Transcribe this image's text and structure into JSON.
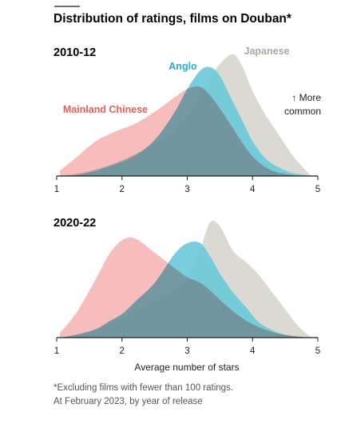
{
  "title": "Distribution of ratings, films on Douban*",
  "xlabel": "Average number of stars",
  "annotation": [
    "↑ More",
    "common"
  ],
  "footnote": [
    "*Excluding films with fewer than 100 ratings.",
    "At February 2023, by year of release"
  ],
  "chart_data": [
    {
      "type": "area",
      "panel_title": "2010-12",
      "xlim": [
        1,
        5
      ],
      "xticks": [
        1,
        2,
        3,
        4,
        5
      ],
      "grid": false,
      "x": [
        1.05,
        1.3,
        1.6,
        1.9,
        2.2,
        2.5,
        2.8,
        3.0,
        3.2,
        3.35,
        3.5,
        3.7,
        3.85,
        4.0,
        4.2,
        4.4,
        4.6,
        4.8,
        4.9
      ],
      "series": [
        {
          "name": "Mainland Chinese",
          "color": "#f4a3a3",
          "values": [
            0.05,
            0.17,
            0.32,
            0.41,
            0.48,
            0.59,
            0.72,
            0.8,
            0.82,
            0.74,
            0.62,
            0.44,
            0.3,
            0.18,
            0.08,
            0.03,
            0.01,
            0.0,
            0.0
          ]
        },
        {
          "name": "Anglo",
          "color": "#69c9d8",
          "values": [
            0.0,
            0.01,
            0.05,
            0.11,
            0.19,
            0.33,
            0.58,
            0.8,
            0.97,
            1.0,
            0.92,
            0.68,
            0.5,
            0.32,
            0.16,
            0.08,
            0.03,
            0.01,
            0.0
          ]
        },
        {
          "name": "Japanese",
          "color": "#d6d6ce",
          "values": [
            0.0,
            0.02,
            0.06,
            0.12,
            0.2,
            0.29,
            0.42,
            0.56,
            0.74,
            0.9,
            1.03,
            1.12,
            1.0,
            0.78,
            0.56,
            0.38,
            0.2,
            0.06,
            0.0
          ]
        }
      ]
    },
    {
      "type": "area",
      "panel_title": "2020-22",
      "xlim": [
        1,
        5
      ],
      "xticks": [
        1,
        2,
        3,
        4,
        5
      ],
      "grid": false,
      "x": [
        1.05,
        1.3,
        1.6,
        1.8,
        2.0,
        2.2,
        2.5,
        2.8,
        3.0,
        3.2,
        3.35,
        3.5,
        3.7,
        3.9,
        4.1,
        4.3,
        4.5,
        4.7,
        4.9
      ],
      "series": [
        {
          "name": "Mainland Chinese",
          "color": "#f4a3a3",
          "values": [
            0.05,
            0.26,
            0.62,
            0.88,
            1.03,
            1.05,
            0.9,
            0.74,
            0.64,
            0.58,
            0.5,
            0.4,
            0.28,
            0.18,
            0.11,
            0.06,
            0.03,
            0.01,
            0.0
          ]
        },
        {
          "name": "Anglo",
          "color": "#69c9d8",
          "values": [
            0.0,
            0.03,
            0.09,
            0.17,
            0.25,
            0.38,
            0.58,
            0.88,
            1.0,
            1.0,
            0.86,
            0.68,
            0.48,
            0.32,
            0.16,
            0.08,
            0.03,
            0.01,
            0.0
          ]
        },
        {
          "name": "Japanese",
          "color": "#d6d6ce",
          "values": [
            0.0,
            0.03,
            0.08,
            0.14,
            0.2,
            0.28,
            0.38,
            0.5,
            0.63,
            0.94,
            1.22,
            1.18,
            0.92,
            0.8,
            0.66,
            0.48,
            0.3,
            0.12,
            0.0
          ]
        }
      ]
    }
  ]
}
